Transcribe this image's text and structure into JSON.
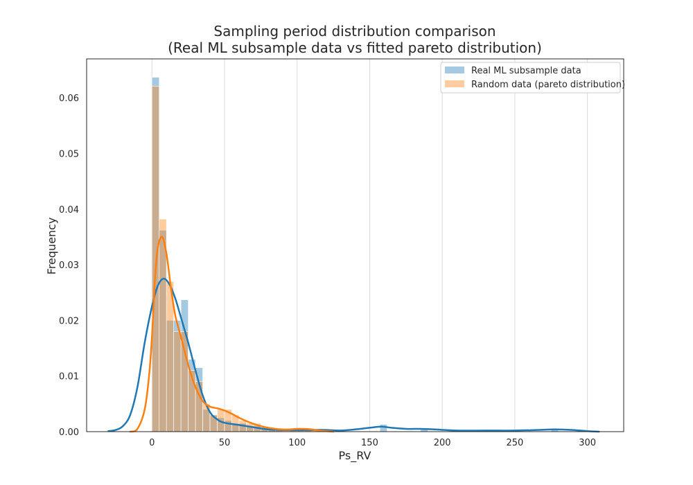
{
  "chart_data": {
    "type": "histogram",
    "title_line1": "Sampling period distribution comparison",
    "title_line2": "(Real ML subsample data vs fitted pareto distribution)",
    "xlabel": "Ps_RV",
    "ylabel": "Frequency",
    "xlim": [
      -45,
      325
    ],
    "ylim": [
      0,
      0.067
    ],
    "xticks": [
      0,
      50,
      100,
      150,
      200,
      250,
      300
    ],
    "yticks": [
      0.0,
      0.01,
      0.02,
      0.03,
      0.04,
      0.05,
      0.06
    ],
    "ytick_labels": [
      "0.00",
      "0.01",
      "0.02",
      "0.03",
      "0.04",
      "0.05",
      "0.06"
    ],
    "grid": "vertical",
    "legend_position": "top-right",
    "series": [
      {
        "name": "Real ML subsample data",
        "color": "#1f77b4",
        "bins": [
          {
            "x0": 0,
            "x1": 5,
            "y": 0.0637
          },
          {
            "x0": 5,
            "x1": 10,
            "y": 0.0362
          },
          {
            "x0": 10,
            "x1": 15,
            "y": 0.02
          },
          {
            "x0": 15,
            "x1": 20,
            "y": 0.02
          },
          {
            "x0": 20,
            "x1": 25,
            "y": 0.0237
          },
          {
            "x0": 25,
            "x1": 30,
            "y": 0.013
          },
          {
            "x0": 30,
            "x1": 35,
            "y": 0.0115
          },
          {
            "x0": 35,
            "x1": 40,
            "y": 0.004
          },
          {
            "x0": 40,
            "x1": 45,
            "y": 0.003
          },
          {
            "x0": 45,
            "x1": 50,
            "y": 0.0025
          },
          {
            "x0": 50,
            "x1": 55,
            "y": 0.002
          },
          {
            "x0": 55,
            "x1": 60,
            "y": 0.0015
          },
          {
            "x0": 60,
            "x1": 65,
            "y": 0.0015
          },
          {
            "x0": 65,
            "x1": 70,
            "y": 0.001
          },
          {
            "x0": 70,
            "x1": 75,
            "y": 0.001
          },
          {
            "x0": 75,
            "x1": 80,
            "y": 0.0006
          },
          {
            "x0": 80,
            "x1": 85,
            "y": 0.0004
          },
          {
            "x0": 85,
            "x1": 90,
            "y": 0.0004
          },
          {
            "x0": 95,
            "x1": 100,
            "y": 0.0004
          },
          {
            "x0": 100,
            "x1": 105,
            "y": 0.0004
          },
          {
            "x0": 105,
            "x1": 110,
            "y": 0.0004
          },
          {
            "x0": 115,
            "x1": 120,
            "y": 0.0005
          },
          {
            "x0": 157,
            "x1": 162,
            "y": 0.0013
          },
          {
            "x0": 185,
            "x1": 190,
            "y": 0.0006
          },
          {
            "x0": 275,
            "x1": 280,
            "y": 0.0006
          }
        ],
        "kde": [
          [
            -30,
            0.0001
          ],
          [
            -25,
            0.0003
          ],
          [
            -20,
            0.001
          ],
          [
            -15,
            0.003
          ],
          [
            -10,
            0.008
          ],
          [
            -5,
            0.016
          ],
          [
            0,
            0.0225
          ],
          [
            4,
            0.0262
          ],
          [
            8,
            0.0275
          ],
          [
            12,
            0.0265
          ],
          [
            16,
            0.024
          ],
          [
            20,
            0.0205
          ],
          [
            25,
            0.016
          ],
          [
            30,
            0.011
          ],
          [
            35,
            0.0065
          ],
          [
            40,
            0.0035
          ],
          [
            45,
            0.0022
          ],
          [
            50,
            0.0016
          ],
          [
            60,
            0.0012
          ],
          [
            70,
            0.0008
          ],
          [
            80,
            0.0004
          ],
          [
            90,
            0.0003
          ],
          [
            100,
            0.0003
          ],
          [
            110,
            0.0003
          ],
          [
            120,
            0.0003
          ],
          [
            130,
            0.0002
          ],
          [
            140,
            0.0004
          ],
          [
            150,
            0.0007
          ],
          [
            158,
            0.0009
          ],
          [
            165,
            0.0007
          ],
          [
            175,
            0.0005
          ],
          [
            185,
            0.0005
          ],
          [
            195,
            0.0004
          ],
          [
            210,
            0.0002
          ],
          [
            230,
            0.0002
          ],
          [
            250,
            0.0002
          ],
          [
            265,
            0.0003
          ],
          [
            278,
            0.0004
          ],
          [
            290,
            0.0003
          ],
          [
            300,
            0.0001
          ],
          [
            308,
            0.0
          ]
        ]
      },
      {
        "name": "Random data (pareto distribution)",
        "color": "#ff7f0e",
        "bins": [
          {
            "x0": 0,
            "x1": 5,
            "y": 0.0621
          },
          {
            "x0": 5,
            "x1": 10,
            "y": 0.0382
          },
          {
            "x0": 10,
            "x1": 15,
            "y": 0.027
          },
          {
            "x0": 15,
            "x1": 20,
            "y": 0.018
          },
          {
            "x0": 20,
            "x1": 25,
            "y": 0.018
          },
          {
            "x0": 25,
            "x1": 30,
            "y": 0.011
          },
          {
            "x0": 30,
            "x1": 35,
            "y": 0.009
          },
          {
            "x0": 35,
            "x1": 40,
            "y": 0.005
          },
          {
            "x0": 40,
            "x1": 45,
            "y": 0.003
          },
          {
            "x0": 45,
            "x1": 50,
            "y": 0.004
          },
          {
            "x0": 50,
            "x1": 55,
            "y": 0.004
          },
          {
            "x0": 55,
            "x1": 60,
            "y": 0.003
          },
          {
            "x0": 60,
            "x1": 65,
            "y": 0.002
          },
          {
            "x0": 65,
            "x1": 70,
            "y": 0.0015
          },
          {
            "x0": 70,
            "x1": 75,
            "y": 0.0015
          },
          {
            "x0": 75,
            "x1": 80,
            "y": 0.0008
          },
          {
            "x0": 80,
            "x1": 85,
            "y": 0.0005
          },
          {
            "x0": 85,
            "x1": 90,
            "y": 0.0005
          },
          {
            "x0": 90,
            "x1": 95,
            "y": 0.0004
          },
          {
            "x0": 95,
            "x1": 100,
            "y": 0.0004
          },
          {
            "x0": 100,
            "x1": 105,
            "y": 0.0006
          },
          {
            "x0": 105,
            "x1": 110,
            "y": 0.0005
          },
          {
            "x0": 110,
            "x1": 115,
            "y": 0.0003
          }
        ],
        "kde": [
          [
            -15,
            0.0
          ],
          [
            -10,
            0.0005
          ],
          [
            -5,
            0.004
          ],
          [
            -2,
            0.01
          ],
          [
            0,
            0.017
          ],
          [
            2,
            0.027
          ],
          [
            4,
            0.033
          ],
          [
            7,
            0.035
          ],
          [
            10,
            0.032
          ],
          [
            13,
            0.026
          ],
          [
            16,
            0.021
          ],
          [
            20,
            0.017
          ],
          [
            25,
            0.012
          ],
          [
            30,
            0.008
          ],
          [
            35,
            0.0055
          ],
          [
            40,
            0.0045
          ],
          [
            45,
            0.0042
          ],
          [
            50,
            0.0038
          ],
          [
            55,
            0.0032
          ],
          [
            60,
            0.0025
          ],
          [
            65,
            0.0019
          ],
          [
            70,
            0.0014
          ],
          [
            75,
            0.001
          ],
          [
            80,
            0.0007
          ],
          [
            85,
            0.0005
          ],
          [
            90,
            0.0004
          ],
          [
            95,
            0.0004
          ],
          [
            100,
            0.0005
          ],
          [
            105,
            0.0005
          ],
          [
            110,
            0.0004
          ],
          [
            115,
            0.0002
          ],
          [
            120,
            0.0001
          ],
          [
            125,
            0.0
          ]
        ]
      }
    ]
  }
}
